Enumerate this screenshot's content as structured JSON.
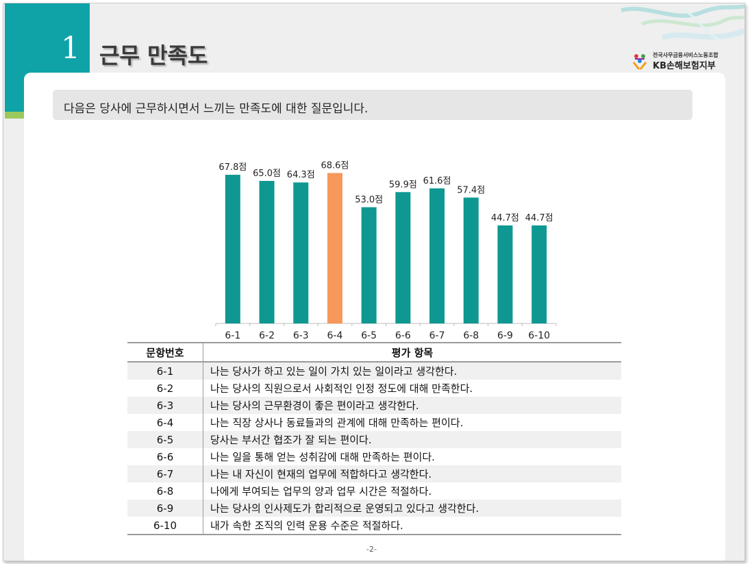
{
  "section": {
    "number": "1",
    "title": "근무 만족도"
  },
  "logo": {
    "union_name": "전국사무금융서비스노동조합",
    "branch_name": "KB손해보험지부"
  },
  "question": "다음은 당사에 근무하시면서 느끼는 만족도에 대한 질문입니다.",
  "colors": {
    "bar": "#0e9891",
    "highlight": "#f7975a",
    "accent_teal": "#0fa3a7",
    "accent_green": "#9dc85c"
  },
  "chart_data": {
    "type": "bar",
    "categories": [
      "6-1",
      "6-2",
      "6-3",
      "6-4",
      "6-5",
      "6-6",
      "6-7",
      "6-8",
      "6-9",
      "6-10"
    ],
    "values": [
      67.8,
      65.0,
      64.3,
      68.6,
      53.0,
      59.9,
      61.6,
      57.4,
      44.7,
      44.7
    ],
    "data_labels": [
      "67.8점",
      "65.0점",
      "64.3점",
      "68.6점",
      "53.0점",
      "59.9점",
      "61.6점",
      "57.4점",
      "44.7점",
      "44.7점"
    ],
    "highlight_index": 3,
    "ylim": [
      0,
      100
    ],
    "grid": false
  },
  "table": {
    "headers": [
      "문항번호",
      "평가 항목"
    ],
    "rows": [
      {
        "id": "6-1",
        "item": "나는 당사가 하고 있는 일이 가치 있는 일이라고 생각한다."
      },
      {
        "id": "6-2",
        "item": "나는 당사의 직원으로서 사회적인 인정 정도에 대해 만족한다."
      },
      {
        "id": "6-3",
        "item": "나는 당사의 근무환경이 좋은 편이라고 생각한다."
      },
      {
        "id": "6-4",
        "item": "나는 직장 상사나 동료들과의 관계에 대해 만족하는 편이다."
      },
      {
        "id": "6-5",
        "item": "당사는 부서간 협조가 잘 되는 편이다."
      },
      {
        "id": "6-6",
        "item": "나는 일을 통해 얻는 성취감에 대해 만족하는 편이다."
      },
      {
        "id": "6-7",
        "item": "나는 내 자신이 현재의 업무에 적합하다고 생각한다."
      },
      {
        "id": "6-8",
        "item": "나에게 부여되는 업무의 양과 업무 시간은 적절하다."
      },
      {
        "id": "6-9",
        "item": "나는 당사의 인사제도가 합리적으로 운영되고 있다고 생각한다."
      },
      {
        "id": "6-10",
        "item": "내가 속한 조직의 인력 운용 수준은 적절하다."
      }
    ]
  },
  "page_number": "-2-"
}
